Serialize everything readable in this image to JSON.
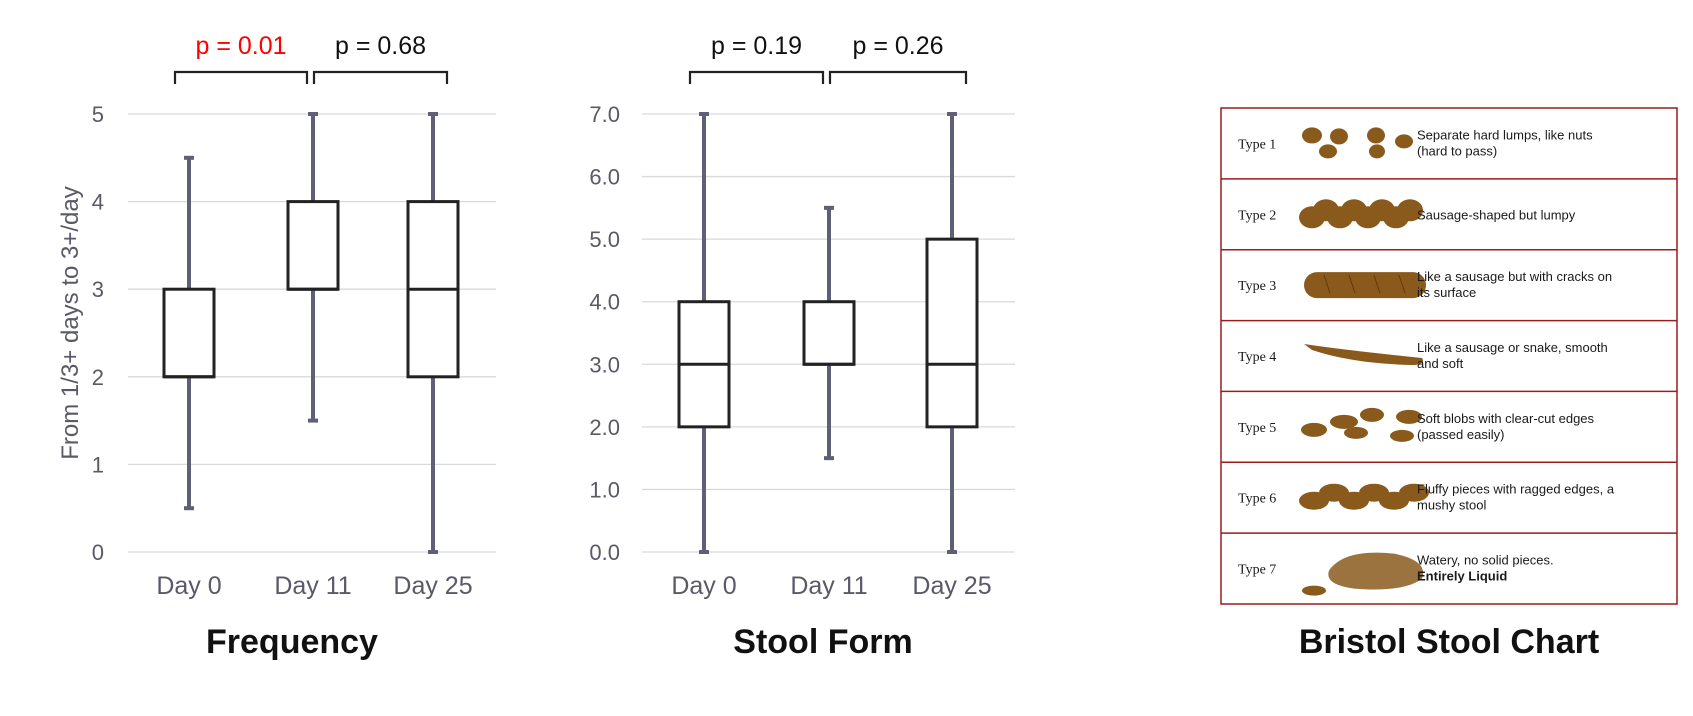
{
  "chart_data": [
    {
      "type": "box",
      "title": "Frequency",
      "ylabel": "From 1/3+ days to 3+/day",
      "ylim": [
        0,
        5
      ],
      "yticks": [
        "0",
        "1",
        "2",
        "3",
        "4",
        "5"
      ],
      "categories": [
        "Day 0",
        "Day 11",
        "Day 25"
      ],
      "boxes": [
        {
          "min": 0.5,
          "q1": 2,
          "median": 2,
          "q3": 3,
          "max": 4.5
        },
        {
          "min": 1.5,
          "q1": 3,
          "median": 3,
          "q3": 4,
          "max": 5
        },
        {
          "min": 0,
          "q1": 2,
          "median": 3,
          "q3": 4,
          "max": 5
        }
      ],
      "comparisons": [
        {
          "label": "p = 0.01",
          "from": "Day 0",
          "to": "Day 11",
          "color": "#ff0000"
        },
        {
          "label": "p = 0.68",
          "from": "Day 11",
          "to": "Day 25",
          "color": "#111111"
        }
      ],
      "grid": true
    },
    {
      "type": "box",
      "title": "Stool Form",
      "ylabel": "",
      "ylim": [
        0,
        7
      ],
      "yticks": [
        "0.0",
        "1.0",
        "2.0",
        "3.0",
        "4.0",
        "5.0",
        "6.0",
        "7.0"
      ],
      "categories": [
        "Day 0",
        "Day 11",
        "Day 25"
      ],
      "boxes": [
        {
          "min": 0,
          "q1": 2,
          "median": 3,
          "q3": 4,
          "max": 7
        },
        {
          "min": 1.5,
          "q1": 3,
          "median": 3,
          "q3": 4,
          "max": 5.5
        },
        {
          "min": 0,
          "q1": 2,
          "median": 3,
          "q3": 5,
          "max": 7
        }
      ],
      "comparisons": [
        {
          "label": "p = 0.19",
          "from": "Day 0",
          "to": "Day 11",
          "color": "#111111"
        },
        {
          "label": "p = 0.26",
          "from": "Day 11",
          "to": "Day 25",
          "color": "#111111"
        }
      ],
      "grid": true
    }
  ],
  "bristol": {
    "title": "Bristol Stool Chart",
    "border_color": "#9b1c1c",
    "stool_color": "#8a5a1c",
    "rows": [
      {
        "type": "Type 1",
        "line1": "Separate hard lumps, like nuts",
        "line2": "(hard to pass)",
        "shape": "lumps-icon"
      },
      {
        "type": "Type 2",
        "line1": "Sausage-shaped but lumpy",
        "line2": "",
        "shape": "lumpy-sausage-icon"
      },
      {
        "type": "Type 3",
        "line1": "Like a sausage but with cracks on",
        "line2": "its surface",
        "shape": "cracked-sausage-icon"
      },
      {
        "type": "Type 4",
        "line1": "Like a sausage or snake, smooth",
        "line2": "and soft",
        "shape": "smooth-snake-icon"
      },
      {
        "type": "Type 5",
        "line1": "Soft blobs with clear-cut edges",
        "line2": "(passed easily)",
        "shape": "soft-blobs-icon"
      },
      {
        "type": "Type 6",
        "line1": "Fluffy pieces with ragged edges, a",
        "line2": "mushy stool",
        "shape": "fluffy-pieces-icon"
      },
      {
        "type": "Type 7",
        "line1": "Watery, no solid pieces.",
        "line2": "Entirely Liquid",
        "shape": "liquid-puddle-icon"
      }
    ]
  },
  "colors": {
    "axis_text": "#595968",
    "whisker": "#5f5f78",
    "box_stroke": "#222222",
    "grid": "#d9d9d9",
    "significant": "#ff0000"
  }
}
